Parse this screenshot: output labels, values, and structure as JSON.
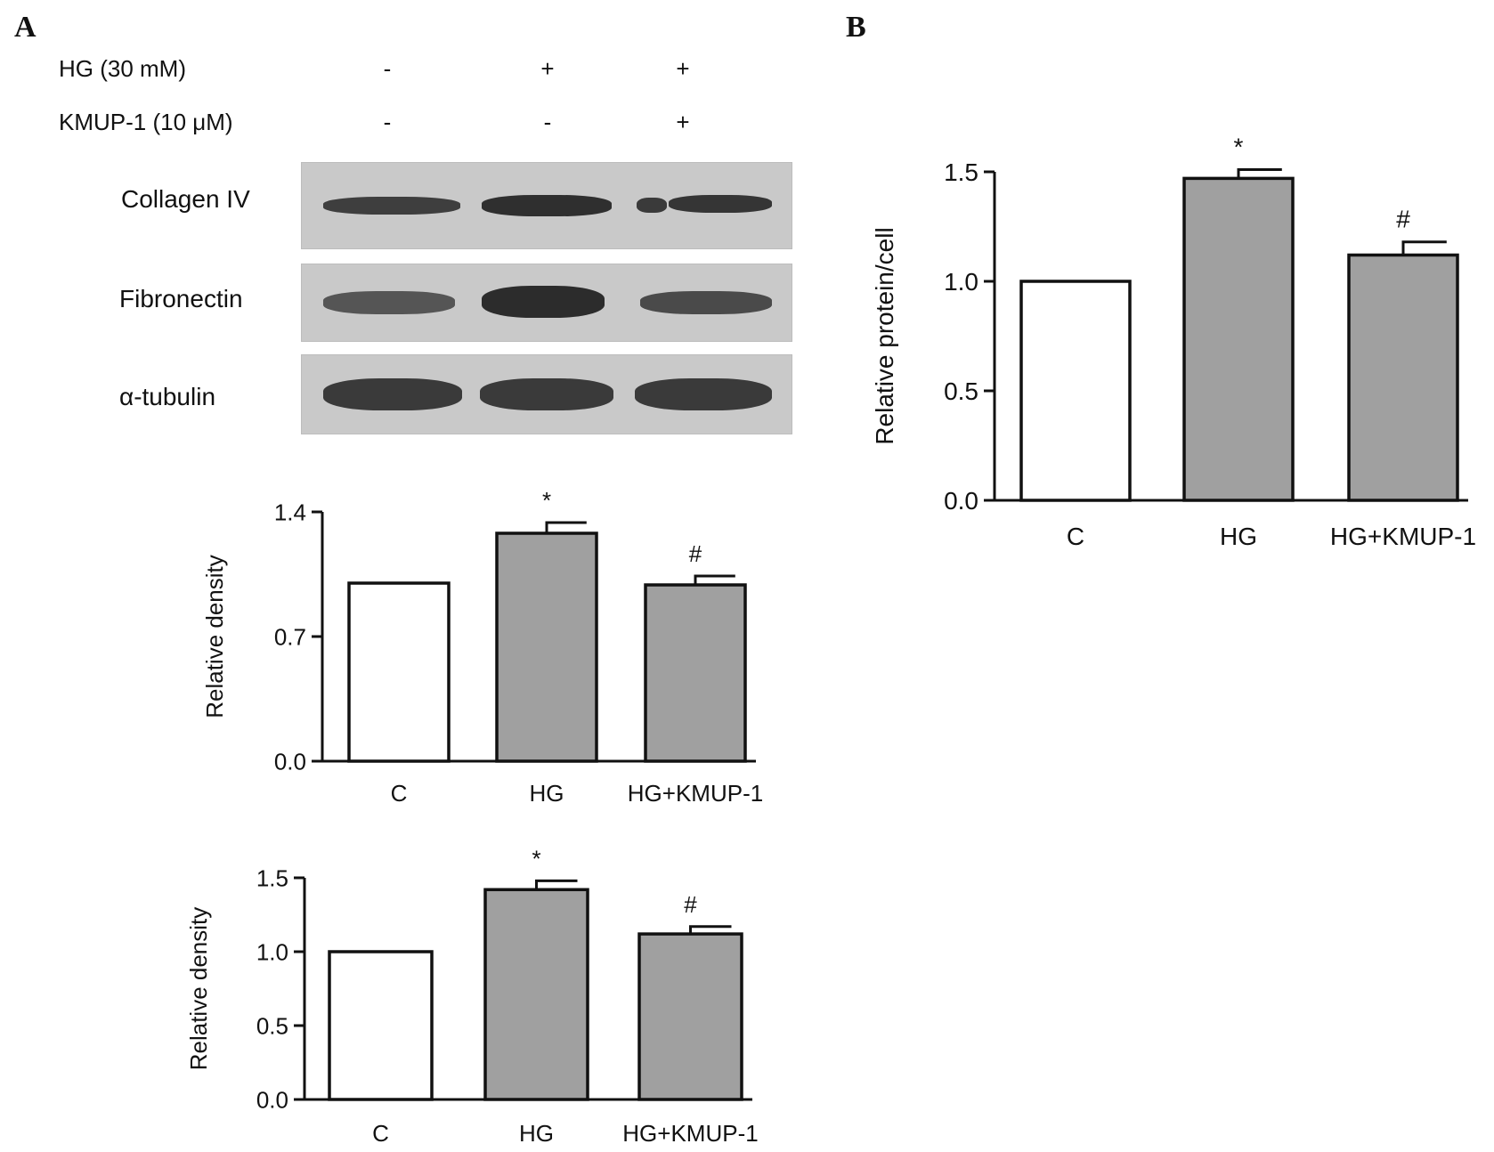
{
  "panels": {
    "a": "A",
    "b": "B"
  },
  "conditions": [
    {
      "label": "HG (30 mM)",
      "marks": [
        "-",
        "+",
        "+"
      ]
    },
    {
      "label": "KMUP-1 (10 μM)",
      "marks": [
        "-",
        "-",
        "+"
      ]
    }
  ],
  "blots": [
    {
      "label": "Collagen IV"
    },
    {
      "label": "Fibronectin"
    },
    {
      "label": "α-tubulin"
    }
  ],
  "chart_data": [
    {
      "type": "bar",
      "panel": "A",
      "categories": [
        "C",
        "HG",
        "HG+KMUP-1"
      ],
      "values": [
        1.0,
        1.28,
        0.99
      ],
      "errors": [
        0.0,
        0.06,
        0.05
      ],
      "annotations": [
        "",
        "*",
        "#"
      ],
      "fills": [
        "#ffffff",
        "#a0a0a0",
        "#a0a0a0"
      ],
      "xlabel": "",
      "ylabel": "Relative density",
      "ylim": [
        0,
        1.4
      ],
      "yticks": [
        0.0,
        0.7,
        1.4
      ],
      "ytick_labels": [
        "0.0",
        "0.7",
        "1.4"
      ]
    },
    {
      "type": "bar",
      "panel": "A",
      "categories": [
        "C",
        "HG",
        "HG+KMUP-1"
      ],
      "values": [
        1.0,
        1.42,
        1.12
      ],
      "errors": [
        0.0,
        0.06,
        0.05
      ],
      "annotations": [
        "",
        "*",
        "#"
      ],
      "fills": [
        "#ffffff",
        "#a0a0a0",
        "#a0a0a0"
      ],
      "xlabel": "",
      "ylabel": "Relative density",
      "ylim": [
        0,
        1.5
      ],
      "yticks": [
        0.0,
        0.5,
        1.0,
        1.5
      ],
      "ytick_labels": [
        "0.0",
        "0.5",
        "1.0",
        "1.5"
      ]
    },
    {
      "type": "bar",
      "panel": "B",
      "categories": [
        "C",
        "HG",
        "HG+KMUP-1"
      ],
      "values": [
        1.0,
        1.47,
        1.12
      ],
      "errors": [
        0.0,
        0.04,
        0.06
      ],
      "annotations": [
        "",
        "*",
        "#"
      ],
      "fills": [
        "#ffffff",
        "#a0a0a0",
        "#a0a0a0"
      ],
      "xlabel": "",
      "ylabel": "Relative protein/cell",
      "ylim": [
        0,
        1.5
      ],
      "yticks": [
        0.0,
        0.5,
        1.0,
        1.5
      ],
      "ytick_labels": [
        "0.0",
        "0.5",
        "1.0",
        "1.5"
      ]
    }
  ]
}
